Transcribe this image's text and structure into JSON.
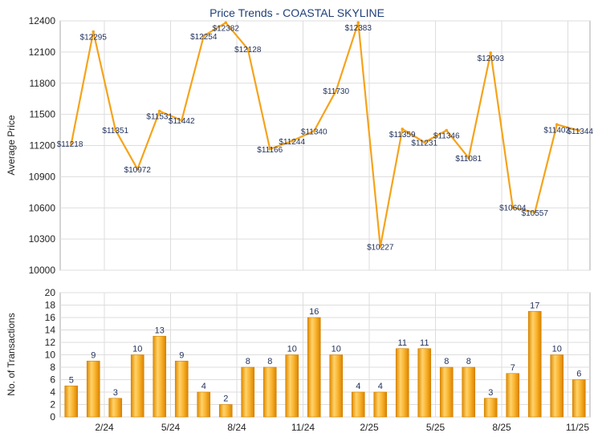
{
  "chart_data": [
    {
      "type": "line",
      "title": "Price Trends - COASTAL SKYLINE",
      "ylabel": "Average Price",
      "ylim": [
        10000,
        12400
      ],
      "yticks": [
        "12400",
        "12100",
        "11800",
        "11500",
        "11200",
        "10900",
        "10600",
        "10300",
        "10000"
      ],
      "grid": true,
      "line_color": "#f5a31a",
      "series": [
        {
          "values": [
            11218,
            12295,
            11351,
            10972,
            11531,
            11442,
            12254,
            12382,
            12128,
            11166,
            11244,
            11340,
            11730,
            12383,
            10227,
            11359,
            11231,
            11346,
            11081,
            12093,
            10604,
            10557,
            11402,
            11344
          ],
          "labels": [
            "$11218",
            "$12295",
            "$11351",
            "$10972",
            "$11531",
            "$11442",
            "$12254",
            "$12382",
            "$12128",
            "$11166",
            "$11244",
            "$11340",
            "$11730",
            "$12383",
            "$10227",
            "$11359",
            "$11231",
            "$11346",
            "$11081",
            "$12093",
            "$10604",
            "$10557",
            "$11402",
            "$11344"
          ]
        }
      ]
    },
    {
      "type": "bar",
      "ylabel": "No. of Transactions",
      "ylim": [
        0,
        20
      ],
      "yticks": [
        "20",
        "18",
        "16",
        "14",
        "12",
        "10",
        "8",
        "6",
        "4",
        "2",
        "0"
      ],
      "grid": true,
      "bar_color": "#f5a31a",
      "values": [
        5,
        9,
        3,
        10,
        13,
        9,
        4,
        2,
        8,
        8,
        10,
        16,
        10,
        4,
        4,
        11,
        11,
        8,
        8,
        3,
        7,
        17,
        10,
        6
      ],
      "xtick_labels": [
        "2/24",
        "5/24",
        "8/24",
        "11/24",
        "2/25",
        "5/25",
        "8/25",
        "11/25"
      ],
      "xtick_positions": [
        1.5,
        4.5,
        7.5,
        10.5,
        13.5,
        16.5,
        19.5,
        22.5
      ]
    }
  ]
}
